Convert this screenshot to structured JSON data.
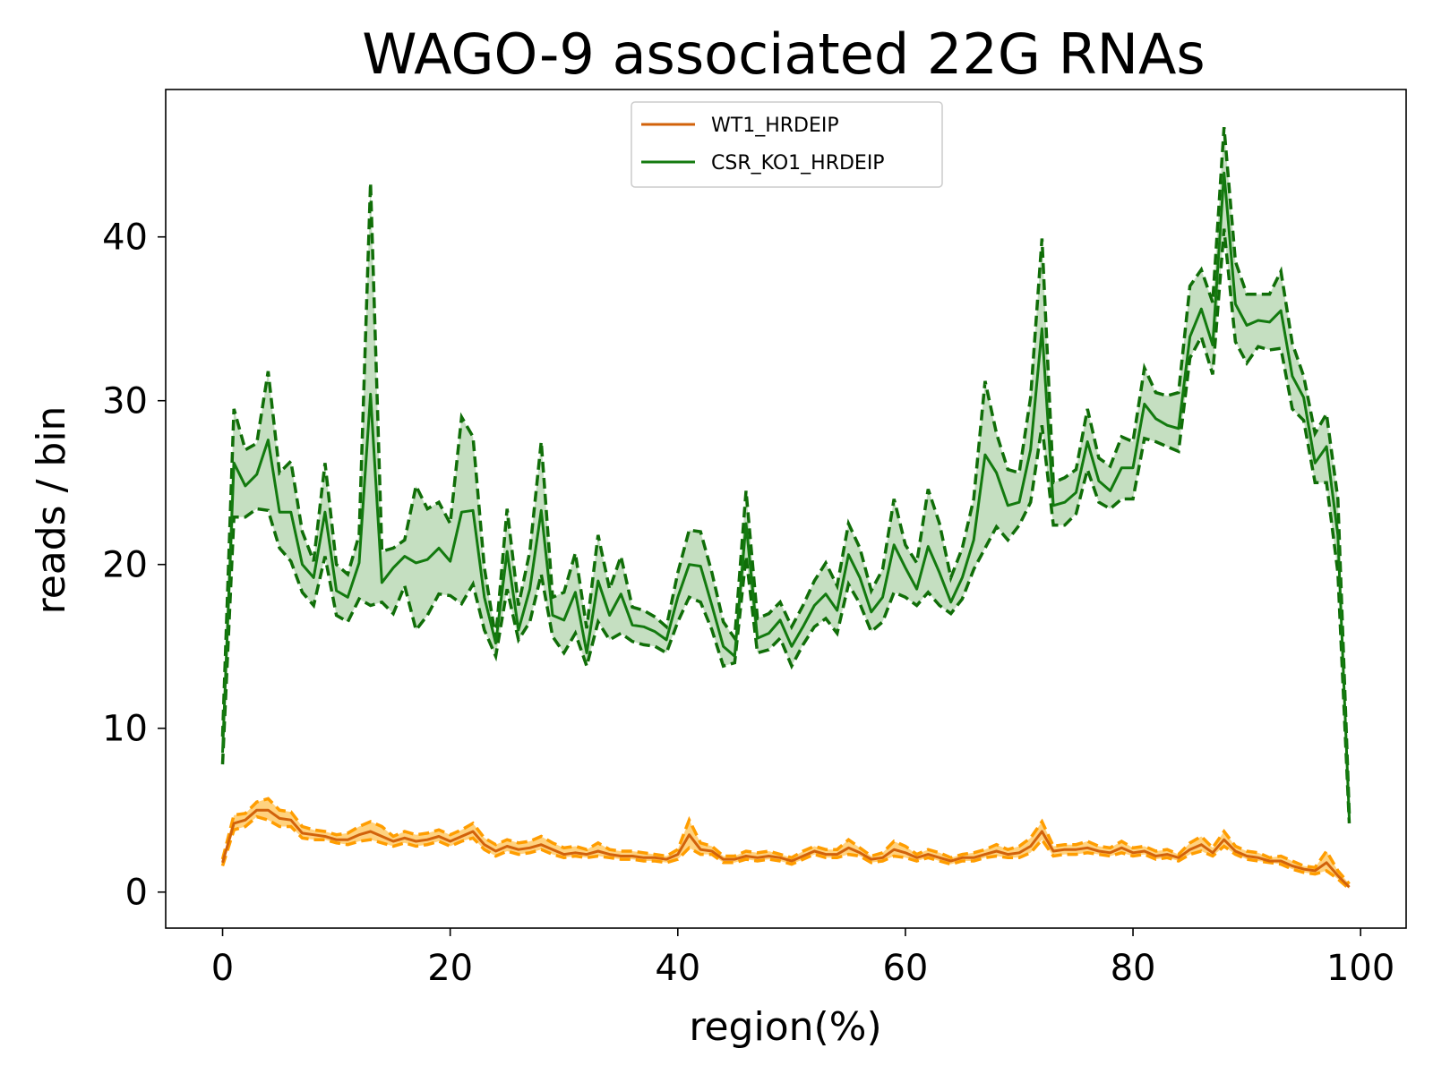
{
  "chart_data": {
    "type": "line",
    "title": "WAGO-9 associated 22G RNAs",
    "xlabel": "region(%)",
    "ylabel": "reads / bin",
    "xlim": [
      -5,
      104
    ],
    "ylim": [
      -2.2,
      49
    ],
    "xticks": [
      0,
      20,
      40,
      60,
      80,
      100
    ],
    "yticks": [
      0,
      10,
      20,
      30,
      40
    ],
    "grid": false,
    "legend_position": "top-center",
    "series": [
      {
        "name": "WT1_HRDEIP",
        "color": "#d2620a",
        "band_color": "#ffa500",
        "x": [
          0,
          1,
          2,
          3,
          4,
          5,
          6,
          7,
          8,
          9,
          10,
          11,
          12,
          13,
          14,
          15,
          16,
          17,
          18,
          19,
          20,
          21,
          22,
          23,
          24,
          25,
          26,
          27,
          28,
          29,
          30,
          31,
          32,
          33,
          34,
          35,
          36,
          37,
          38,
          39,
          40,
          41,
          42,
          43,
          44,
          45,
          46,
          47,
          48,
          49,
          50,
          51,
          52,
          53,
          54,
          55,
          56,
          57,
          58,
          59,
          60,
          61,
          62,
          63,
          64,
          65,
          66,
          67,
          68,
          69,
          70,
          71,
          72,
          73,
          74,
          75,
          76,
          77,
          78,
          79,
          80,
          81,
          82,
          83,
          84,
          85,
          86,
          87,
          88,
          89,
          90,
          91,
          92,
          93,
          94,
          95,
          96,
          97,
          98,
          99
        ],
        "values": [
          1.8,
          4.2,
          4.4,
          5.0,
          5.0,
          4.5,
          4.4,
          3.6,
          3.5,
          3.4,
          3.2,
          3.2,
          3.5,
          3.7,
          3.4,
          3.1,
          3.3,
          3.1,
          3.2,
          3.4,
          3.1,
          3.4,
          3.7,
          2.9,
          2.5,
          2.8,
          2.6,
          2.7,
          2.9,
          2.6,
          2.3,
          2.4,
          2.3,
          2.5,
          2.3,
          2.2,
          2.2,
          2.1,
          2.1,
          2.0,
          2.3,
          3.5,
          2.6,
          2.5,
          2.0,
          2.0,
          2.2,
          2.1,
          2.2,
          2.1,
          1.9,
          2.2,
          2.5,
          2.3,
          2.3,
          2.7,
          2.4,
          2.0,
          2.1,
          2.6,
          2.4,
          2.1,
          2.3,
          2.1,
          1.9,
          2.1,
          2.1,
          2.3,
          2.5,
          2.3,
          2.4,
          2.8,
          3.7,
          2.5,
          2.6,
          2.6,
          2.7,
          2.5,
          2.4,
          2.7,
          2.4,
          2.5,
          2.2,
          2.3,
          2.1,
          2.6,
          2.9,
          2.4,
          3.2,
          2.5,
          2.2,
          2.1,
          1.9,
          1.9,
          1.6,
          1.4,
          1.3,
          1.8,
          1.0,
          0.3
        ],
        "upper": [
          2.0,
          4.7,
          4.8,
          5.5,
          5.7,
          5.0,
          4.9,
          4.0,
          3.8,
          3.7,
          3.5,
          3.6,
          4.0,
          4.3,
          4.0,
          3.4,
          3.7,
          3.5,
          3.6,
          3.8,
          3.5,
          3.8,
          4.2,
          3.3,
          2.9,
          3.2,
          3.0,
          3.1,
          3.4,
          3.0,
          2.7,
          2.8,
          2.6,
          3.0,
          2.6,
          2.5,
          2.5,
          2.4,
          2.3,
          2.2,
          2.6,
          4.4,
          3.0,
          2.8,
          2.2,
          2.2,
          2.5,
          2.4,
          2.5,
          2.3,
          2.1,
          2.5,
          2.8,
          2.6,
          2.6,
          3.2,
          2.7,
          2.2,
          2.4,
          3.1,
          2.8,
          2.3,
          2.6,
          2.4,
          2.1,
          2.3,
          2.4,
          2.6,
          2.9,
          2.6,
          2.8,
          3.3,
          4.3,
          2.8,
          2.9,
          2.9,
          3.1,
          2.8,
          2.7,
          3.1,
          2.7,
          2.8,
          2.5,
          2.6,
          2.3,
          3.0,
          3.4,
          2.7,
          3.7,
          2.8,
          2.5,
          2.4,
          2.1,
          2.2,
          1.9,
          1.6,
          1.5,
          2.5,
          1.3,
          0.5
        ],
        "lower": [
          1.6,
          3.8,
          4.0,
          4.6,
          4.4,
          4.0,
          4.0,
          3.3,
          3.2,
          3.2,
          3.0,
          2.9,
          3.1,
          3.2,
          3.0,
          2.8,
          3.0,
          2.8,
          2.9,
          3.1,
          2.8,
          3.1,
          3.3,
          2.6,
          2.2,
          2.5,
          2.3,
          2.4,
          2.6,
          2.3,
          2.1,
          2.2,
          2.1,
          2.2,
          2.1,
          2.0,
          2.0,
          1.9,
          1.9,
          1.8,
          2.0,
          2.7,
          2.3,
          2.3,
          1.8,
          1.8,
          2.0,
          1.9,
          2.0,
          1.9,
          1.7,
          2.0,
          2.3,
          2.1,
          2.1,
          2.3,
          2.2,
          1.8,
          1.9,
          2.2,
          2.1,
          1.9,
          2.1,
          1.9,
          1.7,
          1.9,
          1.9,
          2.1,
          2.2,
          2.1,
          2.1,
          2.4,
          3.2,
          2.2,
          2.3,
          2.3,
          2.4,
          2.3,
          2.2,
          2.4,
          2.2,
          2.3,
          2.0,
          2.1,
          1.9,
          2.3,
          2.5,
          2.2,
          2.8,
          2.3,
          2.0,
          1.9,
          1.8,
          1.7,
          1.4,
          1.2,
          1.1,
          1.3,
          0.8,
          0.2
        ]
      },
      {
        "name": "CSR_KO1_HRDEIP",
        "color": "#137a0f",
        "band_color": "#8cc083",
        "x": [
          0,
          1,
          2,
          3,
          4,
          5,
          6,
          7,
          8,
          9,
          10,
          11,
          12,
          13,
          14,
          15,
          16,
          17,
          18,
          19,
          20,
          21,
          22,
          23,
          24,
          25,
          26,
          27,
          28,
          29,
          30,
          31,
          32,
          33,
          34,
          35,
          36,
          37,
          38,
          39,
          40,
          41,
          42,
          43,
          44,
          45,
          46,
          47,
          48,
          49,
          50,
          51,
          52,
          53,
          54,
          55,
          56,
          57,
          58,
          59,
          60,
          61,
          62,
          63,
          64,
          65,
          66,
          67,
          68,
          69,
          70,
          71,
          72,
          73,
          74,
          75,
          76,
          77,
          78,
          79,
          80,
          81,
          82,
          83,
          84,
          85,
          86,
          87,
          88,
          89,
          90,
          91,
          92,
          93,
          94,
          95,
          96,
          97,
          98,
          99
        ],
        "values": [
          8.5,
          26.2,
          24.8,
          25.5,
          27.6,
          23.2,
          23.2,
          20.0,
          19.2,
          23.2,
          18.4,
          18.0,
          20.1,
          30.4,
          18.9,
          19.8,
          20.5,
          20.1,
          20.3,
          21.0,
          20.2,
          23.2,
          23.3,
          18.0,
          15.2,
          20.8,
          16.0,
          18.5,
          23.3,
          16.9,
          16.6,
          18.3,
          14.6,
          19.0,
          16.9,
          18.2,
          16.3,
          16.2,
          15.9,
          15.4,
          18.0,
          20.0,
          19.9,
          17.5,
          15.0,
          14.4,
          22.5,
          15.5,
          15.8,
          16.6,
          15.0,
          16.2,
          17.5,
          18.2,
          17.2,
          20.6,
          19.2,
          17.1,
          18.0,
          21.2,
          19.8,
          18.5,
          21.1,
          19.5,
          17.7,
          19.2,
          21.5,
          26.7,
          25.6,
          23.6,
          23.8,
          27.0,
          34.4,
          23.6,
          23.8,
          24.4,
          27.5,
          25.1,
          24.5,
          25.9,
          25.9,
          29.8,
          28.9,
          28.5,
          28.3,
          33.9,
          35.6,
          33.4,
          43.9,
          35.9,
          34.6,
          34.9,
          34.8,
          35.5,
          31.5,
          30.2,
          26.2,
          27.2,
          21.8,
          4.5
        ],
        "upper": [
          9.5,
          29.5,
          27.0,
          27.4,
          31.8,
          25.6,
          26.3,
          22.0,
          20.2,
          26.2,
          20.0,
          19.4,
          21.8,
          43.3,
          20.8,
          21.0,
          21.5,
          24.8,
          23.4,
          23.8,
          22.5,
          29.0,
          27.8,
          19.8,
          15.5,
          23.4,
          17.5,
          20.8,
          27.5,
          18.0,
          18.3,
          20.7,
          16.1,
          21.8,
          18.5,
          20.5,
          17.4,
          17.2,
          16.8,
          16.2,
          19.5,
          22.1,
          22.0,
          19.5,
          16.5,
          15.5,
          24.5,
          16.7,
          17.0,
          17.7,
          16.2,
          17.5,
          19.0,
          20.1,
          18.7,
          22.5,
          21.0,
          18.4,
          19.7,
          24.0,
          21.2,
          20.1,
          24.6,
          22.5,
          19.2,
          21.0,
          24.0,
          31.2,
          28.0,
          25.8,
          25.6,
          30.2,
          39.9,
          25.0,
          25.3,
          25.8,
          29.5,
          26.5,
          26.0,
          27.8,
          27.5,
          32.0,
          30.5,
          30.3,
          30.5,
          37.0,
          38.0,
          36.0,
          46.7,
          38.5,
          36.5,
          36.5,
          36.5,
          37.9,
          33.5,
          31.5,
          28.0,
          29.2,
          24.0,
          4.8
        ],
        "lower": [
          7.8,
          22.9,
          22.9,
          23.4,
          23.3,
          21.0,
          20.2,
          18.3,
          17.5,
          20.5,
          16.9,
          16.5,
          17.9,
          17.5,
          17.7,
          17.0,
          18.7,
          16.0,
          16.9,
          18.2,
          18.1,
          17.6,
          18.8,
          16.0,
          14.4,
          18.5,
          15.4,
          16.5,
          19.4,
          15.6,
          14.6,
          15.8,
          13.8,
          16.5,
          15.4,
          15.8,
          15.3,
          15.1,
          15.0,
          14.6,
          16.5,
          18.0,
          17.7,
          16.0,
          13.8,
          14.0,
          20.5,
          14.6,
          14.8,
          15.5,
          13.8,
          15.1,
          16.2,
          16.7,
          15.8,
          18.8,
          17.6,
          15.9,
          16.5,
          18.3,
          18.0,
          17.5,
          18.3,
          17.5,
          17.0,
          17.9,
          19.7,
          21.0,
          22.3,
          21.5,
          22.4,
          23.8,
          28.5,
          22.4,
          22.4,
          23.1,
          25.8,
          23.8,
          23.4,
          24.0,
          24.0,
          27.7,
          27.5,
          27.2,
          26.9,
          32.6,
          33.9,
          31.6,
          40.5,
          33.6,
          32.3,
          33.3,
          33.1,
          33.2,
          29.5,
          28.8,
          25.0,
          25.0,
          19.5,
          4.2
        ]
      }
    ]
  }
}
